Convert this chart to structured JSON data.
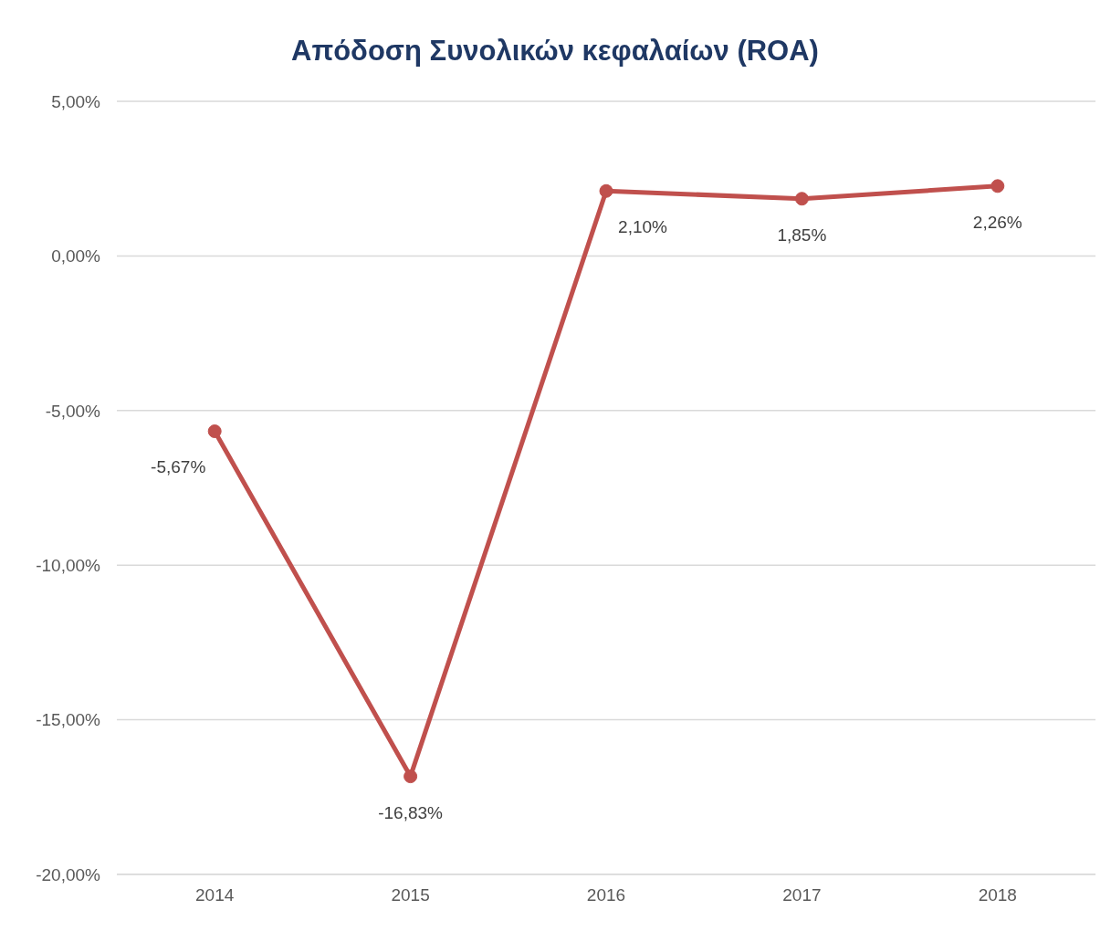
{
  "chart_data": {
    "type": "line",
    "title": "Απόδοση Συνολικών κεφαλαίων (ROA)",
    "categories": [
      "2014",
      "2015",
      "2016",
      "2017",
      "2018"
    ],
    "values": [
      -5.67,
      -16.83,
      2.1,
      1.85,
      2.26
    ],
    "value_labels": [
      "-5,67%",
      "-16,83%",
      "2,10%",
      "1,85%",
      "2,26%"
    ],
    "color": "#c0504d",
    "ylim": [
      -20,
      5
    ],
    "yticks": [
      {
        "value": -20,
        "label": "-20,00%"
      },
      {
        "value": -15,
        "label": "-15,00%"
      },
      {
        "value": -10,
        "label": "-10,00%"
      },
      {
        "value": -5,
        "label": "-5,00%"
      },
      {
        "value": 0,
        "label": "0,00%"
      },
      {
        "value": 5,
        "label": "5,00%"
      }
    ],
    "grid": "y",
    "marker": "circle",
    "line_style": "solid"
  }
}
